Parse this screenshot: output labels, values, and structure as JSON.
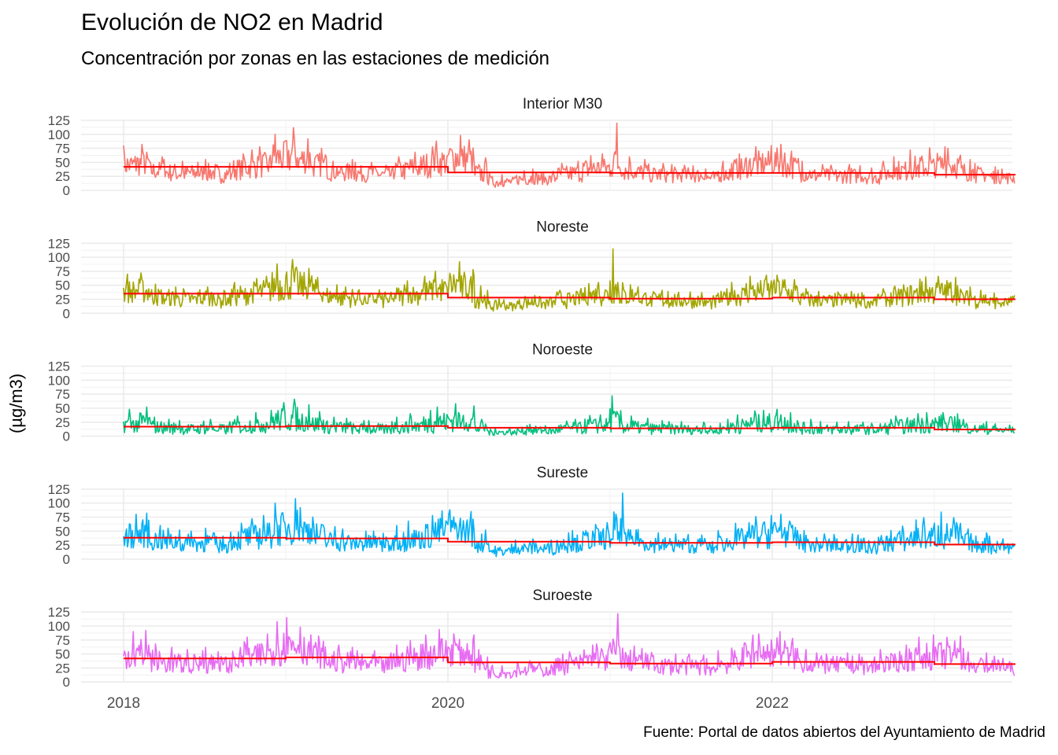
{
  "chart_data": {
    "type": "line",
    "title": "Evolución de NO2 en Madrid",
    "subtitle": "Concentración por zonas en las estaciones de medición",
    "ylabel": "(µg/m3)",
    "xlabel": "",
    "caption": "Fuente: Portal de datos abiertos del Ayuntamiento de Madrid",
    "ylim": [
      0,
      125
    ],
    "y_ticks": [
      "0",
      "25",
      "50",
      "75",
      "100",
      "125"
    ],
    "x_ticks": [
      "2018",
      "2020",
      "2022"
    ],
    "x_start": "2018-01",
    "x_end": "2023-06",
    "x_unit": "month",
    "grid": true,
    "trend_color": "#FF0000",
    "series": [
      {
        "name": "Interior M30",
        "color": "#F8766D",
        "monthly_mean": [
          45,
          48,
          35,
          32,
          30,
          30,
          32,
          28,
          38,
          42,
          45,
          58,
          62,
          55,
          45,
          35,
          33,
          30,
          30,
          27,
          35,
          40,
          45,
          50,
          60,
          55,
          30,
          15,
          15,
          20,
          22,
          20,
          28,
          30,
          38,
          40,
          50,
          35,
          32,
          28,
          27,
          27,
          26,
          22,
          30,
          38,
          45,
          48,
          50,
          42,
          30,
          27,
          26,
          27,
          26,
          23,
          30,
          35,
          40,
          42,
          45,
          45,
          32,
          28,
          24,
          22
        ],
        "monthly_max": [
          80,
          82,
          60,
          55,
          52,
          50,
          55,
          48,
          65,
          72,
          78,
          100,
          112,
          92,
          75,
          60,
          55,
          50,
          50,
          45,
          60,
          68,
          78,
          88,
          98,
          90,
          58,
          30,
          28,
          35,
          38,
          34,
          48,
          52,
          62,
          65,
          120,
          60,
          55,
          48,
          46,
          45,
          44,
          38,
          52,
          65,
          78,
          80,
          82,
          70,
          52,
          46,
          45,
          46,
          44,
          40,
          52,
          60,
          72,
          76,
          78,
          75,
          55,
          48,
          42,
          38
        ],
        "monthly_min": [
          25,
          25,
          18,
          15,
          14,
          14,
          15,
          12,
          18,
          20,
          22,
          28,
          30,
          28,
          22,
          16,
          15,
          14,
          14,
          12,
          16,
          20,
          22,
          25,
          28,
          26,
          12,
          5,
          6,
          9,
          10,
          9,
          12,
          14,
          18,
          18,
          25,
          16,
          15,
          12,
          12,
          12,
          12,
          9,
          14,
          18,
          22,
          22,
          24,
          20,
          14,
          12,
          11,
          12,
          12,
          10,
          14,
          16,
          18,
          20,
          22,
          20,
          14,
          12,
          10,
          10
        ],
        "trend": [
          42,
          42,
          32,
          31,
          31,
          28
        ]
      },
      {
        "name": "Noreste",
        "color": "#A3A500",
        "monthly_mean": [
          38,
          40,
          30,
          27,
          25,
          25,
          27,
          24,
          32,
          36,
          38,
          49,
          53,
          47,
          38,
          30,
          28,
          25,
          25,
          23,
          30,
          34,
          38,
          42,
          51,
          47,
          25,
          13,
          13,
          17,
          19,
          17,
          24,
          25,
          32,
          34,
          42,
          30,
          27,
          24,
          23,
          23,
          22,
          19,
          25,
          32,
          38,
          41,
          42,
          36,
          25,
          23,
          22,
          23,
          22,
          20,
          25,
          30,
          34,
          36,
          38,
          38,
          27,
          24,
          20,
          19
        ],
        "monthly_max": [
          70,
          72,
          52,
          47,
          44,
          42,
          47,
          41,
          55,
          62,
          66,
          88,
          96,
          80,
          64,
          51,
          47,
          42,
          42,
          38,
          51,
          58,
          66,
          75,
          92,
          78,
          49,
          26,
          24,
          30,
          32,
          29,
          41,
          44,
          53,
          55,
          115,
          51,
          47,
          41,
          39,
          38,
          37,
          32,
          44,
          55,
          66,
          68,
          68,
          60,
          44,
          39,
          38,
          39,
          37,
          34,
          44,
          51,
          61,
          65,
          66,
          64,
          47,
          41,
          36,
          32
        ],
        "monthly_min": [
          18,
          18,
          12,
          10,
          9,
          9,
          10,
          8,
          12,
          14,
          15,
          20,
          22,
          20,
          15,
          11,
          10,
          9,
          9,
          8,
          11,
          14,
          15,
          18,
          20,
          18,
          8,
          3,
          4,
          6,
          7,
          6,
          8,
          10,
          12,
          12,
          18,
          11,
          10,
          8,
          8,
          8,
          8,
          6,
          10,
          12,
          15,
          15,
          16,
          14,
          10,
          8,
          8,
          8,
          8,
          7,
          10,
          11,
          12,
          14,
          15,
          14,
          10,
          8,
          7,
          7
        ],
        "trend": [
          35,
          35,
          28,
          26,
          28,
          25
        ]
      },
      {
        "name": "Noroeste",
        "color": "#00BF7D",
        "monthly_mean": [
          22,
          24,
          16,
          14,
          13,
          13,
          14,
          12,
          17,
          20,
          22,
          29,
          31,
          27,
          21,
          16,
          15,
          13,
          13,
          12,
          16,
          19,
          22,
          25,
          29,
          27,
          14,
          7,
          7,
          9,
          10,
          9,
          13,
          14,
          18,
          19,
          26,
          17,
          15,
          13,
          12,
          12,
          12,
          10,
          14,
          18,
          22,
          23,
          25,
          20,
          14,
          12,
          12,
          12,
          12,
          11,
          14,
          17,
          19,
          20,
          22,
          21,
          15,
          13,
          11,
          10
        ],
        "monthly_max": [
          48,
          52,
          34,
          30,
          28,
          27,
          30,
          26,
          36,
          42,
          46,
          60,
          66,
          56,
          44,
          34,
          32,
          28,
          28,
          26,
          34,
          40,
          46,
          52,
          58,
          54,
          30,
          15,
          15,
          19,
          21,
          19,
          27,
          30,
          37,
          38,
          72,
          36,
          32,
          28,
          26,
          26,
          25,
          22,
          30,
          38,
          45,
          46,
          48,
          42,
          30,
          26,
          25,
          26,
          25,
          23,
          30,
          36,
          40,
          42,
          42,
          40,
          30,
          26,
          22,
          20
        ],
        "monthly_min": [
          6,
          6,
          4,
          3,
          3,
          3,
          3,
          3,
          4,
          5,
          5,
          7,
          8,
          7,
          5,
          4,
          3,
          3,
          3,
          3,
          4,
          5,
          5,
          6,
          7,
          7,
          3,
          1,
          2,
          2,
          2,
          2,
          3,
          3,
          4,
          4,
          6,
          4,
          4,
          3,
          3,
          3,
          3,
          2,
          3,
          4,
          5,
          5,
          6,
          5,
          3,
          3,
          3,
          3,
          3,
          3,
          3,
          4,
          5,
          5,
          5,
          5,
          4,
          3,
          3,
          3
        ],
        "trend": [
          17,
          18,
          15,
          14,
          15,
          12
        ]
      },
      {
        "name": "Sureste",
        "color": "#00B0F6",
        "monthly_mean": [
          42,
          44,
          33,
          30,
          28,
          28,
          30,
          26,
          35,
          39,
          42,
          54,
          58,
          51,
          42,
          32,
          30,
          28,
          28,
          25,
          33,
          37,
          42,
          47,
          56,
          51,
          28,
          14,
          14,
          19,
          20,
          19,
          26,
          28,
          35,
          37,
          47,
          33,
          30,
          26,
          25,
          25,
          24,
          20,
          28,
          35,
          42,
          45,
          48,
          40,
          28,
          25,
          24,
          25,
          24,
          21,
          28,
          33,
          37,
          39,
          42,
          42,
          30,
          26,
          22,
          21
        ],
        "monthly_max": [
          80,
          82,
          60,
          55,
          52,
          50,
          55,
          48,
          64,
          72,
          78,
          100,
          108,
          92,
          75,
          58,
          54,
          50,
          50,
          46,
          60,
          68,
          78,
          86,
          88,
          85,
          52,
          28,
          27,
          34,
          36,
          34,
          47,
          51,
          62,
          65,
          118,
          58,
          53,
          47,
          45,
          44,
          43,
          37,
          51,
          64,
          76,
          78,
          80,
          68,
          51,
          45,
          44,
          45,
          43,
          39,
          51,
          59,
          70,
          74,
          84,
          74,
          54,
          47,
          41,
          36
        ],
        "monthly_min": [
          20,
          20,
          14,
          12,
          11,
          11,
          12,
          10,
          14,
          17,
          18,
          24,
          26,
          23,
          17,
          13,
          12,
          11,
          11,
          10,
          13,
          17,
          18,
          21,
          24,
          22,
          10,
          4,
          5,
          7,
          8,
          7,
          10,
          12,
          15,
          15,
          21,
          13,
          12,
          10,
          10,
          10,
          10,
          7,
          12,
          15,
          18,
          18,
          20,
          17,
          12,
          10,
          9,
          10,
          10,
          8,
          12,
          13,
          15,
          17,
          18,
          17,
          12,
          10,
          8,
          8
        ],
        "trend": [
          38,
          37,
          31,
          29,
          30,
          26
        ]
      },
      {
        "name": "Suroeste",
        "color": "#E76BF3",
        "monthly_mean": [
          48,
          50,
          37,
          34,
          32,
          32,
          34,
          30,
          40,
          44,
          48,
          61,
          66,
          58,
          48,
          37,
          35,
          32,
          32,
          29,
          37,
          42,
          48,
          53,
          58,
          55,
          32,
          16,
          16,
          21,
          23,
          21,
          30,
          32,
          40,
          42,
          53,
          37,
          34,
          30,
          29,
          29,
          28,
          23,
          32,
          40,
          48,
          51,
          54,
          46,
          33,
          30,
          29,
          30,
          29,
          26,
          33,
          38,
          43,
          46,
          47,
          48,
          35,
          30,
          27,
          25
        ],
        "monthly_max": [
          90,
          92,
          68,
          62,
          58,
          56,
          62,
          54,
          72,
          80,
          86,
          108,
          115,
          98,
          82,
          66,
          62,
          56,
          56,
          52,
          66,
          74,
          84,
          94,
          86,
          84,
          58,
          30,
          29,
          36,
          38,
          36,
          50,
          54,
          66,
          68,
          122,
          64,
          60,
          53,
          50,
          50,
          48,
          42,
          56,
          70,
          84,
          86,
          90,
          78,
          58,
          52,
          50,
          52,
          50,
          45,
          58,
          66,
          80,
          84,
          80,
          82,
          60,
          52,
          46,
          42
        ],
        "monthly_min": [
          24,
          24,
          18,
          15,
          14,
          14,
          15,
          12,
          18,
          20,
          22,
          28,
          30,
          28,
          22,
          16,
          15,
          14,
          14,
          12,
          16,
          20,
          22,
          25,
          28,
          26,
          12,
          5,
          6,
          9,
          10,
          9,
          12,
          14,
          18,
          18,
          25,
          16,
          15,
          12,
          12,
          12,
          12,
          9,
          14,
          18,
          22,
          22,
          26,
          21,
          15,
          13,
          12,
          13,
          13,
          11,
          15,
          17,
          19,
          21,
          22,
          20,
          15,
          12,
          11,
          11
        ],
        "trend": [
          42,
          44,
          35,
          33,
          36,
          32
        ]
      }
    ]
  }
}
